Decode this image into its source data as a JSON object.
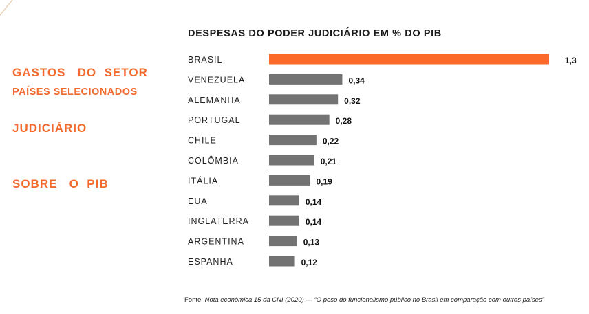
{
  "side": {
    "title_lines": [
      "GASTOS   DO  SETOR",
      "JUDICIÁRIO",
      "SOBRE   O  PIB"
    ],
    "subtitle": "PAÍSES SELECIONADOS"
  },
  "source": {
    "prefix": "Fonte: ",
    "text": "Nota econômica 15 da CNI (2020) — “O peso do funcionalismo público no Brasil em comparação com outros países”"
  },
  "colors": {
    "accent": "#fb6a2b",
    "bar": "#737373",
    "title_orange": "#f26a2e"
  },
  "chart_data": {
    "type": "bar",
    "orientation": "horizontal",
    "title": "DESPESAS DO PODER JUDICIÁRIO EM % DO PIB",
    "categories": [
      "BRASIL",
      "VENEZUELA",
      "ALEMANHA",
      "PORTUGAL",
      "CHILE",
      "COLÔMBIA",
      "ITÁLIA",
      "EUA",
      "INGLATERRA",
      "ARGENTINA",
      "ESPANHA"
    ],
    "values": [
      1.3,
      0.34,
      0.32,
      0.28,
      0.22,
      0.21,
      0.19,
      0.14,
      0.14,
      0.13,
      0.12
    ],
    "value_labels": [
      "1,3",
      "0,34",
      "0,32",
      "0,28",
      "0,22",
      "0,21",
      "0,19",
      "0,14",
      "0,14",
      "0,13",
      "0,12"
    ],
    "highlight": "BRASIL",
    "xlim": [
      0,
      1.3
    ],
    "grid": false,
    "legend": "none"
  }
}
